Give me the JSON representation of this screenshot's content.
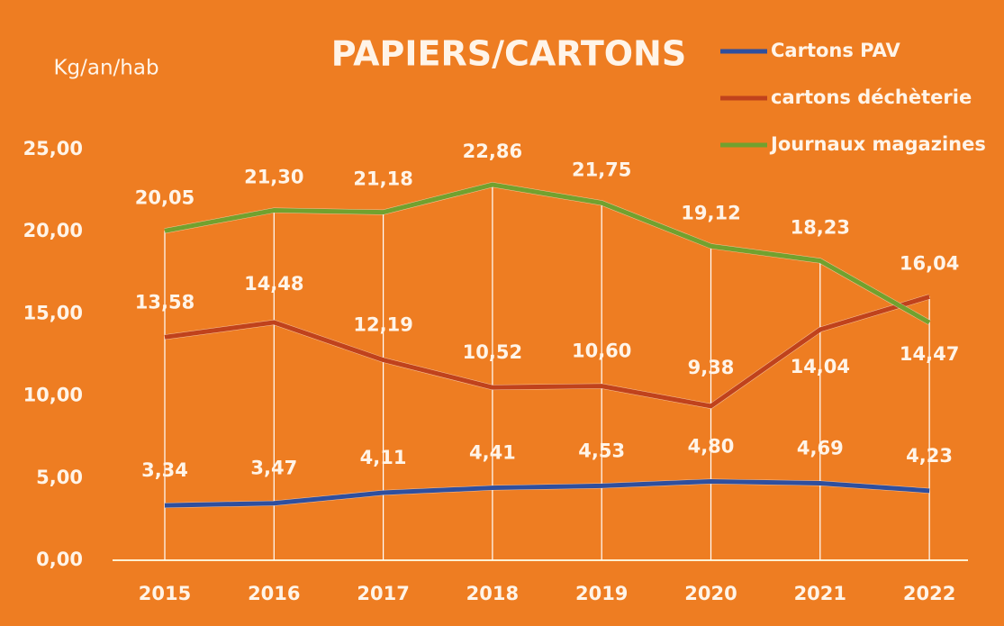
{
  "chart_data": {
    "type": "line",
    "title": "PAPIERS/CARTONS",
    "y_label": "Kg/an/hab",
    "categories": [
      "2015",
      "2016",
      "2017",
      "2018",
      "2019",
      "2020",
      "2021",
      "2022"
    ],
    "series": [
      {
        "name": "Cartons PAV",
        "color": "#2f4f9e",
        "values": [
          3.34,
          3.47,
          4.11,
          4.41,
          4.53,
          4.8,
          4.69,
          4.23
        ],
        "value_labels": [
          "3,34",
          "3,47",
          "4,11",
          "4,41",
          "4,53",
          "4,80",
          "4,69",
          "4,23"
        ]
      },
      {
        "name": "cartons déchèterie",
        "color": "#c0421c",
        "values": [
          13.58,
          14.48,
          12.19,
          10.52,
          10.6,
          9.38,
          14.04,
          16.04
        ],
        "value_labels": [
          "13,58",
          "14,48",
          "12,19",
          "10,52",
          "10,60",
          "9,38",
          "14,04",
          "16,04"
        ]
      },
      {
        "name": "Journaux magazines",
        "color": "#72a12e",
        "values": [
          20.05,
          21.3,
          21.18,
          22.86,
          21.75,
          19.12,
          18.23,
          14.47
        ],
        "value_labels": [
          "20,05",
          "21,30",
          "21,18",
          "22,86",
          "21,75",
          "19,12",
          "18,23",
          "14,47"
        ]
      }
    ],
    "ylim": [
      0,
      25
    ],
    "yticks": [
      {
        "value": 0,
        "label": "0,00"
      },
      {
        "value": 5,
        "label": "5,00"
      },
      {
        "value": 10,
        "label": "10,00"
      },
      {
        "value": 15,
        "label": "15,00"
      },
      {
        "value": 20,
        "label": "20,00"
      },
      {
        "value": 25,
        "label": "25,00"
      }
    ],
    "legend": "top-right",
    "drop_lines": true
  }
}
